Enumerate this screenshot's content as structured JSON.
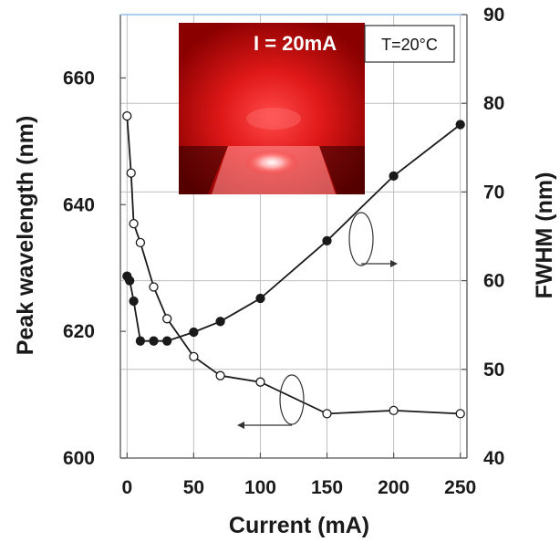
{
  "chart_data": {
    "type": "line",
    "xlabel": "Current (mA)",
    "ylabel_left": "Peak wavelength (nm)",
    "ylabel_right": "FWHM (nm)",
    "xlim": [
      -5,
      255
    ],
    "ylim_left": [
      600,
      670
    ],
    "ylim_right": [
      40,
      90
    ],
    "x_ticks": [
      "0",
      "50",
      "100",
      "150",
      "200",
      "250"
    ],
    "y_left_ticks": [
      "600",
      "620",
      "640",
      "660"
    ],
    "y_right_ticks": [
      "40",
      "50",
      "60",
      "70",
      "80",
      "90"
    ],
    "grid": true,
    "series": [
      {
        "axis": "left",
        "marker": "open-circle",
        "x": [
          0,
          3,
          5,
          10,
          20,
          30,
          50,
          70,
          100,
          150,
          200,
          250
        ],
        "y": [
          654,
          645,
          637,
          634,
          627,
          622,
          616,
          613,
          612,
          607,
          607.5,
          607
        ]
      },
      {
        "axis": "right",
        "marker": "filled-circle",
        "x": [
          0,
          2,
          5,
          10,
          20,
          30,
          50,
          70,
          100,
          150,
          200,
          250
        ],
        "y": [
          60.5,
          60,
          57.7,
          53.2,
          53.2,
          53.2,
          54.2,
          55.4,
          58,
          64.5,
          71.8,
          77.6
        ]
      }
    ],
    "annotations": {
      "inset_current": "I = 20mA",
      "inset_temperature": "T=20°C"
    }
  }
}
